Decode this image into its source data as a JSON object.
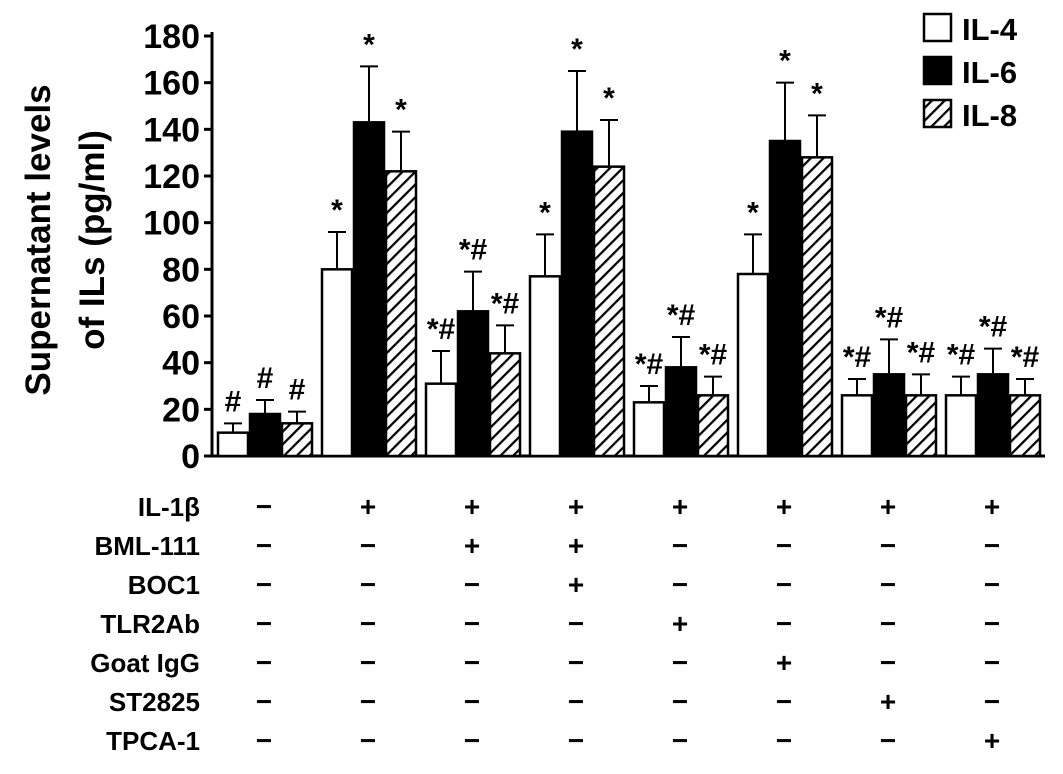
{
  "chart_data": {
    "type": "bar",
    "ylabel_line1": "Supernatant levels",
    "ylabel_line2": "of ILs (pg/ml)",
    "ylim": [
      0,
      180
    ],
    "yticks": [
      0,
      20,
      40,
      60,
      80,
      100,
      120,
      140,
      160,
      180
    ],
    "grid": false,
    "legend_position": "top-right",
    "series": [
      {
        "name": "IL-4",
        "fill": "white",
        "values": [
          10,
          80,
          31,
          77,
          23,
          78,
          26,
          26
        ],
        "errors": [
          4,
          16,
          14,
          18,
          7,
          17,
          7,
          8
        ],
        "annotations": [
          "#",
          "*",
          "*#",
          "*",
          "*#",
          "*",
          "*#",
          "*#"
        ]
      },
      {
        "name": "IL-6",
        "fill": "black",
        "values": [
          18,
          143,
          62,
          139,
          38,
          135,
          35,
          35
        ],
        "errors": [
          6,
          24,
          17,
          26,
          13,
          25,
          15,
          11
        ],
        "annotations": [
          "#",
          "*",
          "*#",
          "*",
          "*#",
          "*",
          "*#",
          "*#"
        ]
      },
      {
        "name": "IL-8",
        "fill": "hatched",
        "values": [
          14,
          122,
          44,
          124,
          26,
          128,
          26,
          26
        ],
        "errors": [
          5,
          17,
          12,
          20,
          8,
          18,
          9,
          7
        ],
        "annotations": [
          "#",
          "*",
          "*#",
          "*",
          "*#",
          "*",
          "*#",
          "*#"
        ]
      }
    ],
    "conditions": [
      {
        "label": "IL-1β",
        "values": [
          "−",
          "+",
          "+",
          "+",
          "+",
          "+",
          "+",
          "+"
        ]
      },
      {
        "label": "BML-111",
        "values": [
          "−",
          "−",
          "+",
          "+",
          "−",
          "−",
          "−",
          "−"
        ]
      },
      {
        "label": "BOC1",
        "values": [
          "−",
          "−",
          "−",
          "+",
          "−",
          "−",
          "−",
          "−"
        ]
      },
      {
        "label": "TLR2Ab",
        "values": [
          "−",
          "−",
          "−",
          "−",
          "+",
          "−",
          "−",
          "−"
        ]
      },
      {
        "label": "Goat IgG",
        "values": [
          "−",
          "−",
          "−",
          "−",
          "−",
          "+",
          "−",
          "−"
        ]
      },
      {
        "label": "ST2825",
        "values": [
          "−",
          "−",
          "−",
          "−",
          "−",
          "−",
          "+",
          "−"
        ]
      },
      {
        "label": "TPCA-1",
        "values": [
          "−",
          "−",
          "−",
          "−",
          "−",
          "−",
          "−",
          "+"
        ]
      }
    ]
  }
}
